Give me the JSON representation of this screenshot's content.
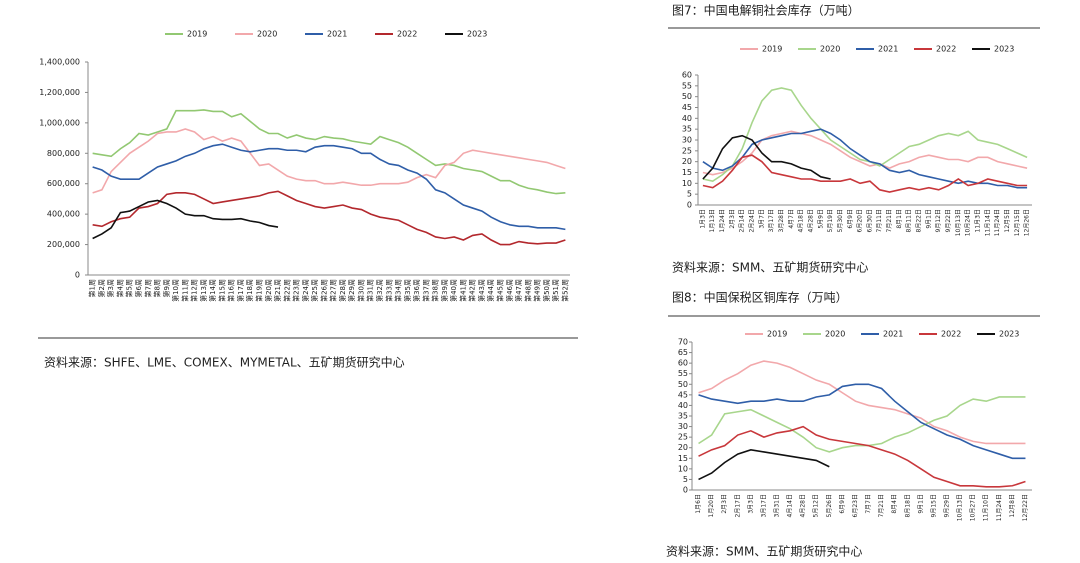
{
  "chart_data": [
    {
      "type": "line",
      "source": "资料来源：SHFE、LME、COMEX、MYMETAL、五矿期货研究中心",
      "categories": [
        "第1周",
        "第2周",
        "第3周",
        "第4周",
        "第5周",
        "第6周",
        "第7周",
        "第8周",
        "第9周",
        "第10周",
        "第11周",
        "第12周",
        "第13周",
        "第14周",
        "第15周",
        "第16周",
        "第17周",
        "第18周",
        "第19周",
        "第20周",
        "第21周",
        "第22周",
        "第23周",
        "第24周",
        "第25周",
        "第26周",
        "第27周",
        "第28周",
        "第29周",
        "第30周",
        "第31周",
        "第32周",
        "第33周",
        "第34周",
        "第35周",
        "第36周",
        "第37周",
        "第38周",
        "第39周",
        "第40周",
        "第41周",
        "第42周",
        "第43周",
        "第44周",
        "第45周",
        "第46周",
        "第47周",
        "第48周",
        "第49周",
        "第50周",
        "第51周",
        "第52周"
      ],
      "ylim": [
        0,
        1400000
      ],
      "yticks": [
        0,
        {
          "value": 200000,
          "label": "200,000"
        },
        {
          "value": 400000,
          "label": "400,000"
        },
        {
          "value": 600000,
          "label": "600,000"
        },
        {
          "value": 800000,
          "label": "800,000"
        },
        {
          "value": 1000000,
          "label": "1,000,000"
        },
        {
          "value": 1200000,
          "label": "1,200,000"
        },
        {
          "value": 1400000,
          "label": "1,400,000"
        }
      ],
      "series": [
        {
          "name": "2019",
          "color": "#92c872",
          "values": [
            800000,
            790000,
            780000,
            830000,
            870000,
            930000,
            920000,
            940000,
            960000,
            1080000,
            1080000,
            1080000,
            1085000,
            1075000,
            1075000,
            1040000,
            1060000,
            1010000,
            960000,
            930000,
            930000,
            900000,
            920000,
            900000,
            890000,
            910000,
            900000,
            895000,
            880000,
            870000,
            860000,
            910000,
            890000,
            870000,
            840000,
            800000,
            760000,
            720000,
            730000,
            720000,
            700000,
            690000,
            680000,
            650000,
            620000,
            620000,
            590000,
            570000,
            560000,
            545000,
            535000,
            540000
          ]
        },
        {
          "name": "2020",
          "color": "#f2a8ab",
          "values": [
            540000,
            560000,
            680000,
            740000,
            800000,
            840000,
            880000,
            930000,
            940000,
            940000,
            960000,
            940000,
            890000,
            910000,
            880000,
            900000,
            880000,
            800000,
            720000,
            730000,
            690000,
            650000,
            630000,
            620000,
            620000,
            600000,
            600000,
            610000,
            600000,
            590000,
            590000,
            600000,
            600000,
            600000,
            610000,
            640000,
            660000,
            640000,
            720000,
            740000,
            800000,
            820000,
            810000,
            800000,
            790000,
            780000,
            770000,
            760000,
            750000,
            740000,
            720000,
            700000
          ]
        },
        {
          "name": "2021",
          "color": "#2f5ea8",
          "values": [
            710000,
            690000,
            650000,
            630000,
            630000,
            630000,
            670000,
            710000,
            730000,
            750000,
            780000,
            800000,
            830000,
            850000,
            860000,
            840000,
            820000,
            810000,
            820000,
            830000,
            830000,
            820000,
            820000,
            810000,
            840000,
            850000,
            850000,
            840000,
            830000,
            800000,
            800000,
            760000,
            730000,
            720000,
            690000,
            670000,
            630000,
            560000,
            540000,
            500000,
            460000,
            440000,
            420000,
            380000,
            350000,
            330000,
            320000,
            320000,
            310000,
            310000,
            310000,
            300000
          ]
        },
        {
          "name": "2022",
          "color": "#b3282d",
          "values": [
            330000,
            320000,
            350000,
            370000,
            380000,
            440000,
            450000,
            470000,
            530000,
            540000,
            540000,
            530000,
            500000,
            470000,
            480000,
            490000,
            500000,
            510000,
            520000,
            540000,
            550000,
            520000,
            490000,
            470000,
            450000,
            440000,
            450000,
            460000,
            440000,
            430000,
            400000,
            380000,
            370000,
            360000,
            330000,
            300000,
            280000,
            250000,
            240000,
            250000,
            230000,
            260000,
            270000,
            230000,
            200000,
            200000,
            220000,
            210000,
            205000,
            210000,
            210000,
            230000
          ]
        },
        {
          "name": "2023",
          "color": "#111111",
          "values": [
            240000,
            270000,
            310000,
            410000,
            420000,
            450000,
            480000,
            490000,
            470000,
            440000,
            400000,
            390000,
            390000,
            370000,
            365000,
            365000,
            370000,
            355000,
            345000,
            325000,
            315000,
            null,
            null,
            null,
            null,
            null,
            null,
            null,
            null,
            null,
            null,
            null,
            null,
            null,
            null,
            null,
            null,
            null,
            null,
            null,
            null,
            null,
            null,
            null,
            null,
            null,
            null,
            null,
            null,
            null,
            null,
            null
          ]
        }
      ]
    },
    {
      "type": "line",
      "title": "图7：中国电解铜社会库存（万吨）",
      "source": "资料来源：SMM、五矿期货研究中心",
      "categories": [
        "1月3日",
        "1月13日",
        "1月24日",
        "2月3日",
        "2月14日",
        "2月24日",
        "3月7日",
        "3月17日",
        "3月28日",
        "4月7日",
        "4月18日",
        "4月28日",
        "5月9日",
        "5月19日",
        "5月30日",
        "6月9日",
        "6月20日",
        "6月30日",
        "7月11日",
        "7月21日",
        "8月1日",
        "8月11日",
        "8月22日",
        "9月1日",
        "9月12日",
        "9月22日",
        "10月13日",
        "10月24日",
        "11月3日",
        "11月14日",
        "11月24日",
        "12月5日",
        "12月15日",
        "12月26日"
      ],
      "ylim": [
        0,
        60
      ],
      "yticks": [
        0,
        5,
        10,
        15,
        20,
        25,
        30,
        35,
        40,
        45,
        50,
        55,
        60
      ],
      "series": [
        {
          "name": "2019",
          "color": "#f2a8ab",
          "values": [
            15,
            14,
            15,
            17,
            20,
            24,
            30,
            32,
            33,
            34,
            33,
            32,
            30,
            28,
            25,
            22,
            20,
            18,
            19,
            17,
            19,
            20,
            22,
            23,
            22,
            21,
            21,
            20,
            22,
            22,
            20,
            19,
            18,
            17
          ]
        },
        {
          "name": "2020",
          "color": "#a8d68c",
          "values": [
            12,
            11,
            14,
            18,
            26,
            38,
            48,
            53,
            54,
            53,
            46,
            40,
            35,
            30,
            27,
            24,
            21,
            20,
            18,
            21,
            24,
            27,
            28,
            30,
            32,
            33,
            32,
            34,
            30,
            29,
            28,
            26,
            24,
            22
          ]
        },
        {
          "name": "2021",
          "color": "#2f5ea8",
          "values": [
            20,
            17,
            16,
            18,
            22,
            28,
            30,
            31,
            32,
            33,
            33,
            34,
            35,
            33,
            30,
            26,
            23,
            20,
            19,
            16,
            15,
            16,
            14,
            13,
            12,
            11,
            10,
            11,
            10,
            10,
            9,
            9,
            8,
            8
          ]
        },
        {
          "name": "2022",
          "color": "#c8373b",
          "values": [
            9,
            8,
            11,
            16,
            22,
            23,
            20,
            15,
            14,
            13,
            12,
            12,
            11,
            11,
            11,
            12,
            10,
            11,
            7,
            6,
            7,
            8,
            7,
            8,
            7,
            9,
            12,
            9,
            10,
            12,
            11,
            10,
            9,
            9
          ]
        },
        {
          "name": "2023",
          "color": "#111111",
          "values": [
            12,
            17,
            26,
            31,
            32,
            30,
            24,
            20,
            20,
            19,
            17,
            16,
            13,
            12,
            null,
            null,
            null,
            null,
            null,
            null,
            null,
            null,
            null,
            null,
            null,
            null,
            null,
            null,
            null,
            null,
            null,
            null,
            null,
            null
          ]
        }
      ]
    },
    {
      "type": "line",
      "title": "图8：中国保税区铜库存（万吨）",
      "source": "资料来源：SMM、五矿期货研究中心",
      "categories": [
        "1月6日",
        "1月20日",
        "2月3日",
        "2月17日",
        "3月3日",
        "3月17日",
        "3月31日",
        "4月14日",
        "4月28日",
        "5月12日",
        "5月26日",
        "6月9日",
        "6月23日",
        "7月7日",
        "7月21日",
        "8月4日",
        "8月18日",
        "9月1日",
        "9月15日",
        "9月29日",
        "10月13日",
        "10月27日",
        "11月10日",
        "11月24日",
        "12月8日",
        "12月22日"
      ],
      "ylim": [
        0,
        70
      ],
      "yticks": [
        0,
        5,
        10,
        15,
        20,
        25,
        30,
        35,
        40,
        45,
        50,
        55,
        60,
        65,
        70
      ],
      "series": [
        {
          "name": "2019",
          "color": "#f2a8ab",
          "values": [
            46,
            48,
            52,
            55,
            59,
            61,
            60,
            58,
            55,
            52,
            50,
            46,
            42,
            40,
            39,
            38,
            36,
            34,
            30,
            28,
            25,
            23,
            22,
            22,
            22,
            22
          ]
        },
        {
          "name": "2020",
          "color": "#a8d68c",
          "values": [
            22,
            26,
            36,
            37,
            38,
            35,
            32,
            29,
            25,
            20,
            18,
            20,
            21,
            21,
            22,
            25,
            27,
            30,
            33,
            35,
            40,
            43,
            42,
            44,
            44,
            44
          ]
        },
        {
          "name": "2021",
          "color": "#2f5ea8",
          "values": [
            45,
            43,
            42,
            41,
            42,
            42,
            43,
            42,
            42,
            44,
            45,
            49,
            50,
            50,
            48,
            42,
            37,
            32,
            29,
            26,
            24,
            21,
            19,
            17,
            15,
            15
          ]
        },
        {
          "name": "2022",
          "color": "#c8373b",
          "values": [
            16,
            19,
            21,
            26,
            28,
            25,
            27,
            28,
            30,
            26,
            24,
            23,
            22,
            21,
            19,
            17,
            14,
            10,
            6,
            4,
            2,
            2,
            1.5,
            1.5,
            2,
            4
          ]
        },
        {
          "name": "2023",
          "color": "#111111",
          "values": [
            5,
            8,
            13,
            17,
            19,
            18,
            17,
            16,
            15,
            14,
            11,
            null,
            null,
            null,
            null,
            null,
            null,
            null,
            null,
            null,
            null,
            null,
            null,
            null,
            null,
            null
          ]
        }
      ]
    }
  ]
}
